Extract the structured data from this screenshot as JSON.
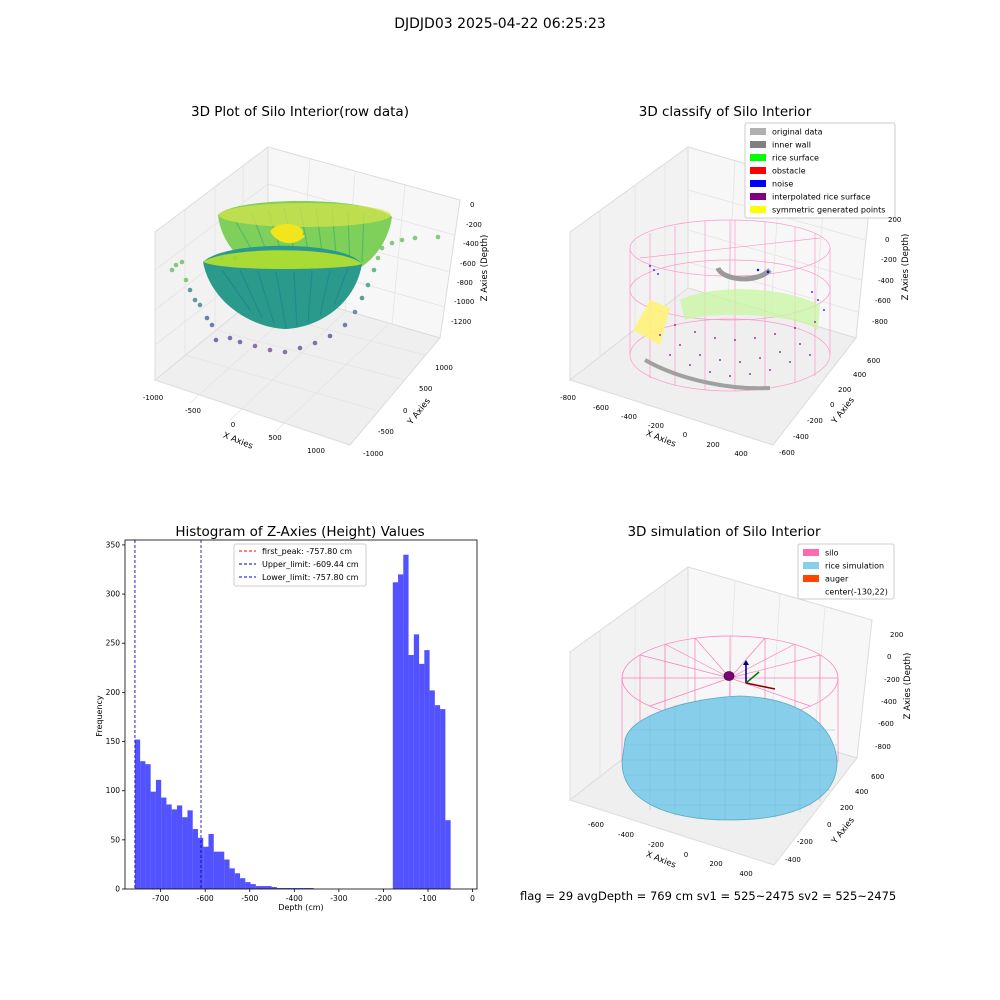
{
  "figure": {
    "suptitle": "DJDJD03 2025-04-22 06:25:23",
    "info_text": "flag = 29  avgDepth = 769 cm  sv1 = 525~2475  sv2 = 525~2475"
  },
  "panel_raw": {
    "title": "3D Plot of Silo Interior(row data)",
    "xlabel": "X Axies",
    "ylabel": "Y Axies",
    "zlabel": "Z Axies (Depth)",
    "x_ticks": [
      "-1000",
      "-500",
      "0",
      "500",
      "1000"
    ],
    "y_ticks": [
      "-1000",
      "-500",
      "0",
      "500",
      "1000"
    ],
    "z_ticks": [
      "0",
      "-200",
      "-400",
      "-600",
      "-800",
      "-1000",
      "-1200"
    ]
  },
  "panel_classify": {
    "title": "3D classify of Silo Interior",
    "xlabel": "X Axies",
    "ylabel": "Y Axies",
    "zlabel": "Z Axies (Depth)",
    "x_ticks": [
      "-800",
      "-600",
      "-400",
      "-200",
      "0",
      "200",
      "400"
    ],
    "y_ticks": [
      "-600",
      "-400",
      "-200",
      "0",
      "200",
      "400",
      "600"
    ],
    "z_ticks": [
      "200",
      "0",
      "-200",
      "-400",
      "-600",
      "-800"
    ],
    "legend": [
      {
        "label": "original data",
        "color": "#b0b0b0"
      },
      {
        "label": "inner wall",
        "color": "#808080"
      },
      {
        "label": "rice surface",
        "color": "#00ff00"
      },
      {
        "label": "obstacle",
        "color": "#ff0000"
      },
      {
        "label": "noise",
        "color": "#0000ff"
      },
      {
        "label": "interpolated rice surface",
        "color": "#800080"
      },
      {
        "label": "symmetric generated points",
        "color": "#ffff00"
      }
    ]
  },
  "panel_sim": {
    "title": "3D simulation of Silo Interior",
    "xlabel": "X Axies",
    "ylabel": "Y Axies",
    "zlabel": "Z Axies (Depth)",
    "x_ticks": [
      "-600",
      "-400",
      "-200",
      "0",
      "200",
      "400"
    ],
    "y_ticks": [
      "-400",
      "-200",
      "0",
      "200",
      "400",
      "600"
    ],
    "z_ticks": [
      "200",
      "0",
      "-200",
      "-400",
      "-600",
      "-800"
    ],
    "legend": [
      {
        "label": "silo",
        "color": "#ff69b4"
      },
      {
        "label": "rice simulation",
        "color": "#87ceeb"
      },
      {
        "label": "auger",
        "color": "#ff4500"
      },
      {
        "label": "center(-130,22)",
        "color": ""
      }
    ]
  },
  "chart_data": {
    "type": "bar",
    "title": "Histogram of Z-Axies (Height) Values",
    "xlabel": "Depth (cm)",
    "ylabel": "Frequency",
    "xlim": [
      -780,
      10
    ],
    "ylim": [
      0,
      355
    ],
    "x_ticks": [
      -700,
      -600,
      -500,
      -400,
      -300,
      -200,
      -100,
      0
    ],
    "y_ticks": [
      0,
      50,
      100,
      150,
      200,
      250,
      300,
      350
    ],
    "bar_color": "#0000ff",
    "bins": [
      {
        "x0": -757.8,
        "x1": -746.0,
        "count": 152
      },
      {
        "x0": -746.0,
        "x1": -734.2,
        "count": 130
      },
      {
        "x0": -734.2,
        "x1": -722.4,
        "count": 127
      },
      {
        "x0": -722.4,
        "x1": -710.6,
        "count": 99
      },
      {
        "x0": -710.6,
        "x1": -698.8,
        "count": 111
      },
      {
        "x0": -698.8,
        "x1": -687.0,
        "count": 93
      },
      {
        "x0": -687.0,
        "x1": -675.2,
        "count": 86
      },
      {
        "x0": -675.2,
        "x1": -663.4,
        "count": 81
      },
      {
        "x0": -663.4,
        "x1": -651.6,
        "count": 85
      },
      {
        "x0": -651.6,
        "x1": -639.8,
        "count": 73
      },
      {
        "x0": -639.8,
        "x1": -628.0,
        "count": 80
      },
      {
        "x0": -628.0,
        "x1": -616.2,
        "count": 61
      },
      {
        "x0": -616.2,
        "x1": -604.4,
        "count": 52
      },
      {
        "x0": -604.4,
        "x1": -592.6,
        "count": 43
      },
      {
        "x0": -592.6,
        "x1": -580.8,
        "count": 56
      },
      {
        "x0": -580.8,
        "x1": -569.0,
        "count": 38
      },
      {
        "x0": -569.0,
        "x1": -557.2,
        "count": 38
      },
      {
        "x0": -557.2,
        "x1": -545.4,
        "count": 30
      },
      {
        "x0": -545.4,
        "x1": -533.6,
        "count": 21
      },
      {
        "x0": -533.6,
        "x1": -521.8,
        "count": 16
      },
      {
        "x0": -521.8,
        "x1": -510.0,
        "count": 11
      },
      {
        "x0": -510.0,
        "x1": -498.2,
        "count": 7
      },
      {
        "x0": -498.2,
        "x1": -486.4,
        "count": 5
      },
      {
        "x0": -486.4,
        "x1": -474.6,
        "count": 3
      },
      {
        "x0": -474.6,
        "x1": -462.8,
        "count": 3
      },
      {
        "x0": -462.8,
        "x1": -451.0,
        "count": 3
      },
      {
        "x0": -451.0,
        "x1": -439.2,
        "count": 2
      },
      {
        "x0": -439.2,
        "x1": -427.4,
        "count": 1
      },
      {
        "x0": -427.4,
        "x1": -415.6,
        "count": 1
      },
      {
        "x0": -415.6,
        "x1": -403.8,
        "count": 1
      },
      {
        "x0": -403.8,
        "x1": -392.0,
        "count": 1
      },
      {
        "x0": -392.0,
        "x1": -380.2,
        "count": 1
      },
      {
        "x0": -380.2,
        "x1": -368.4,
        "count": 1
      },
      {
        "x0": -368.4,
        "x1": -356.6,
        "count": 1
      },
      {
        "x0": -179.0,
        "x1": -167.2,
        "count": 312
      },
      {
        "x0": -167.2,
        "x1": -155.4,
        "count": 320
      },
      {
        "x0": -155.4,
        "x1": -143.6,
        "count": 340
      },
      {
        "x0": -143.6,
        "x1": -131.8,
        "count": 238
      },
      {
        "x0": -131.8,
        "x1": -120.0,
        "count": 259
      },
      {
        "x0": -120.0,
        "x1": -108.2,
        "count": 229
      },
      {
        "x0": -108.2,
        "x1": -96.4,
        "count": 243
      },
      {
        "x0": -96.4,
        "x1": -84.6,
        "count": 202
      },
      {
        "x0": -84.6,
        "x1": -72.8,
        "count": 187
      },
      {
        "x0": -72.8,
        "x1": -61.0,
        "count": 183
      },
      {
        "x0": -61.0,
        "x1": -49.2,
        "count": 70
      }
    ],
    "vlines": [
      {
        "label": "first_peak: -757.80 cm",
        "x": -757.8,
        "color": "#ff0000"
      },
      {
        "label": "Upper_limit: -609.44 cm",
        "x": -609.44,
        "color": "#00008b"
      },
      {
        "label": "Lower_limit: -757.80 cm",
        "x": -757.8,
        "color": "#0000ff"
      }
    ],
    "grid": false,
    "legend_position": "top-right"
  }
}
